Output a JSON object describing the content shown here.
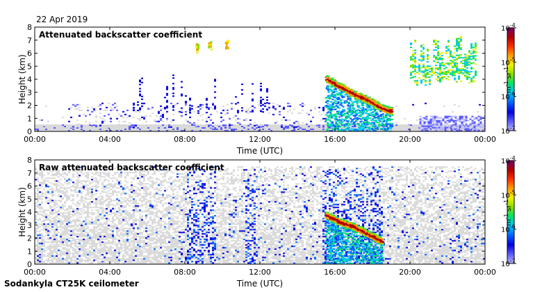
{
  "date": "22 Apr 2019",
  "instrument": "Sodankyla CT25K ceilometer",
  "colors": {
    "noise_gray": "#d9d9d9",
    "colormap": [
      "#b8b8ff",
      "#5a5aff",
      "#0000e0",
      "#0060ff",
      "#00c8ff",
      "#00e070",
      "#80e000",
      "#f0f000",
      "#ffa000",
      "#ff3000",
      "#b00000",
      "#700070"
    ]
  },
  "chart_data": [
    {
      "type": "heatmap",
      "title": "Attenuated backscatter coefficient",
      "xlabel": "Time (UTC)",
      "ylabel": "Height (km)",
      "xticks": [
        "00:00",
        "04:00",
        "08:00",
        "12:00",
        "16:00",
        "20:00",
        "00:00"
      ],
      "xlim_hours": [
        0,
        24
      ],
      "ylim_km": [
        0,
        8
      ],
      "yticks": [
        "0",
        "1",
        "2",
        "3",
        "4",
        "5",
        "6",
        "7",
        "8"
      ],
      "colorbar": {
        "scale": "log",
        "range": [
          1e-07,
          0.0001
        ],
        "ticks": [
          "10",
          "10",
          "10",
          "10"
        ],
        "tick_exponents": [
          "-7",
          "-6",
          "-5",
          "-4"
        ],
        "unit": "m",
        "unit_exp1": "-1",
        "unit_mid": " sr",
        "unit_exp2": "-1"
      },
      "features": {
        "aerosol_layer_height_km": 0.3,
        "cloud_layer_descending": [
          {
            "t": 15.5,
            "h": 4.1
          },
          {
            "t": 16.2,
            "h": 3.5
          },
          {
            "t": 17.0,
            "h": 2.9
          },
          {
            "t": 17.8,
            "h": 2.4
          },
          {
            "t": 18.5,
            "h": 1.8
          },
          {
            "t": 19.0,
            "h": 1.6
          }
        ],
        "upper_clouds": [
          {
            "t_start": 20.0,
            "t_end": 23.5,
            "h_base": 3.5,
            "h_top": 7.4
          }
        ],
        "high_patches": [
          {
            "t": 8.6,
            "h": 6.4
          },
          {
            "t": 9.3,
            "h": 6.6
          },
          {
            "t": 10.2,
            "h": 6.8
          }
        ]
      }
    },
    {
      "type": "heatmap",
      "title": "Raw attenuated backscatter coefficient",
      "xlabel": "Time (UTC)",
      "ylabel": "Height (km)",
      "xticks": [
        "00:00",
        "04:00",
        "08:00",
        "12:00",
        "16:00",
        "20:00",
        "00:00"
      ],
      "xlim_hours": [
        0,
        24
      ],
      "ylim_km": [
        0,
        8
      ],
      "yticks": [
        "0",
        "1",
        "2",
        "3",
        "4",
        "5",
        "6",
        "7",
        "8"
      ],
      "colorbar": {
        "scale": "log",
        "range": [
          1e-07,
          0.0001
        ],
        "ticks": [
          "10",
          "10",
          "10",
          "10"
        ],
        "tick_exponents": [
          "-7",
          "-6",
          "-5",
          "-4"
        ],
        "unit": "m",
        "unit_exp1": "-1",
        "unit_mid": " sr",
        "unit_exp2": "-1"
      },
      "features": {
        "noise_region_top_km": 7.5,
        "cloud_layer_descending": [
          {
            "t": 15.5,
            "h": 3.8
          },
          {
            "t": 16.2,
            "h": 3.3
          },
          {
            "t": 17.0,
            "h": 2.9
          },
          {
            "t": 17.8,
            "h": 2.3
          },
          {
            "t": 18.5,
            "h": 1.8
          }
        ]
      }
    }
  ]
}
